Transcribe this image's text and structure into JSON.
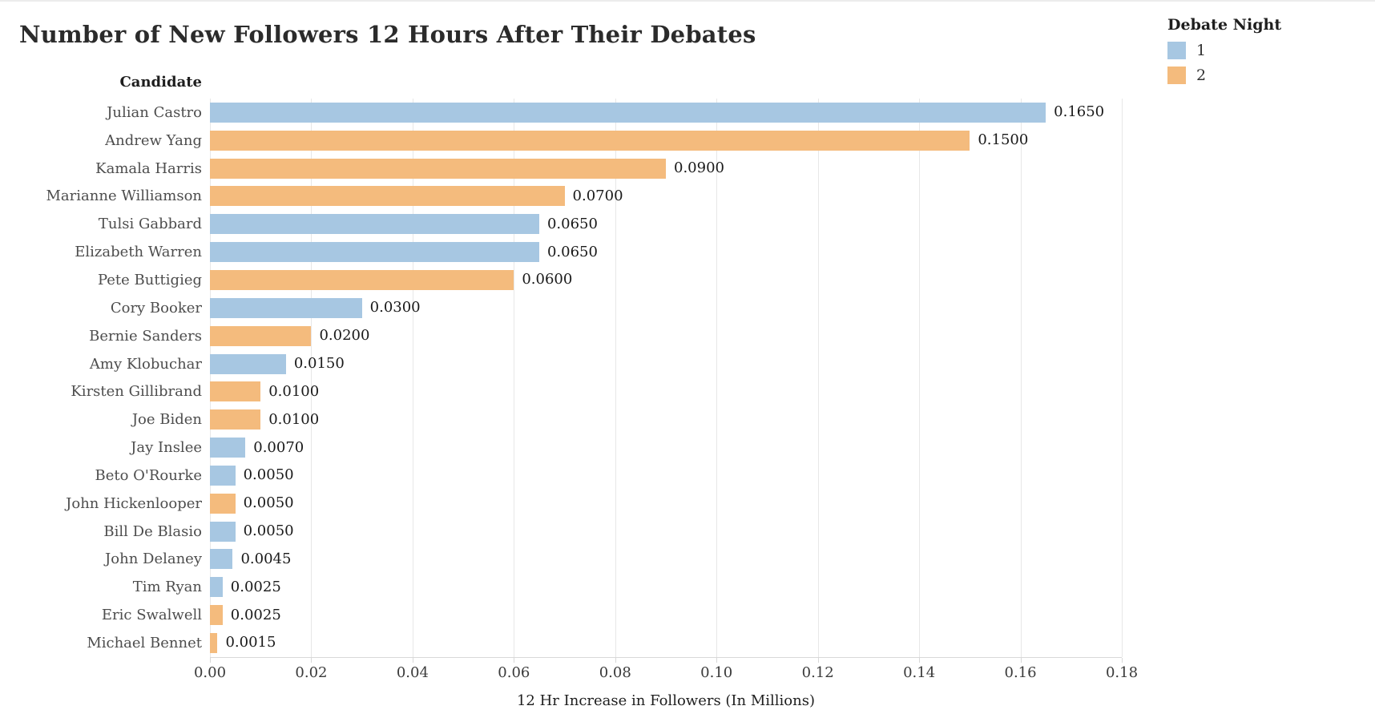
{
  "legend": {
    "title": "Debate Night",
    "items": [
      {
        "label": "1",
        "color": "#a7c7e2"
      },
      {
        "label": "2",
        "color": "#f4bb7d"
      }
    ]
  },
  "chart_data": {
    "type": "bar",
    "orientation": "horizontal",
    "title": "Number of New Followers 12 Hours After Their Debates",
    "xlabel": "12 Hr Increase in Followers (In Millions)",
    "ylabel": "Candidate",
    "xlim": [
      0,
      0.18
    ],
    "xticks": [
      0.0,
      0.02,
      0.04,
      0.06,
      0.08,
      0.1,
      0.12,
      0.14,
      0.16,
      0.18
    ],
    "xtick_labels": [
      "0.00",
      "0.02",
      "0.04",
      "0.06",
      "0.08",
      "0.10",
      "0.12",
      "0.14",
      "0.16",
      "0.18"
    ],
    "grid": "vertical-light",
    "legend_position": "top-right",
    "series_field": "Debate Night",
    "bars": [
      {
        "candidate": "Julian Castro",
        "value": 0.165,
        "label": "0.1650",
        "debate_night": "1"
      },
      {
        "candidate": "Andrew Yang",
        "value": 0.15,
        "label": "0.1500",
        "debate_night": "2"
      },
      {
        "candidate": "Kamala Harris",
        "value": 0.09,
        "label": "0.0900",
        "debate_night": "2"
      },
      {
        "candidate": "Marianne Williamson",
        "value": 0.07,
        "label": "0.0700",
        "debate_night": "2"
      },
      {
        "candidate": "Tulsi Gabbard",
        "value": 0.065,
        "label": "0.0650",
        "debate_night": "1"
      },
      {
        "candidate": "Elizabeth Warren",
        "value": 0.065,
        "label": "0.0650",
        "debate_night": "1"
      },
      {
        "candidate": "Pete Buttigieg",
        "value": 0.06,
        "label": "0.0600",
        "debate_night": "2"
      },
      {
        "candidate": "Cory Booker",
        "value": 0.03,
        "label": "0.0300",
        "debate_night": "1"
      },
      {
        "candidate": "Bernie Sanders",
        "value": 0.02,
        "label": "0.0200",
        "debate_night": "2"
      },
      {
        "candidate": "Amy Klobuchar",
        "value": 0.015,
        "label": "0.0150",
        "debate_night": "1"
      },
      {
        "candidate": "Kirsten Gillibrand",
        "value": 0.01,
        "label": "0.0100",
        "debate_night": "2"
      },
      {
        "candidate": "Joe Biden",
        "value": 0.01,
        "label": "0.0100",
        "debate_night": "2"
      },
      {
        "candidate": "Jay Inslee",
        "value": 0.007,
        "label": "0.0070",
        "debate_night": "1"
      },
      {
        "candidate": "Beto O'Rourke",
        "value": 0.005,
        "label": "0.0050",
        "debate_night": "1"
      },
      {
        "candidate": "John Hickenlooper",
        "value": 0.005,
        "label": "0.0050",
        "debate_night": "2"
      },
      {
        "candidate": "Bill De Blasio",
        "value": 0.005,
        "label": "0.0050",
        "debate_night": "1"
      },
      {
        "candidate": "John Delaney",
        "value": 0.0045,
        "label": "0.0045",
        "debate_night": "1"
      },
      {
        "candidate": "Tim Ryan",
        "value": 0.0025,
        "label": "0.0025",
        "debate_night": "1"
      },
      {
        "candidate": "Eric Swalwell",
        "value": 0.0025,
        "label": "0.0025",
        "debate_night": "2"
      },
      {
        "candidate": "Michael Bennet",
        "value": 0.0015,
        "label": "0.0015",
        "debate_night": "2"
      }
    ]
  }
}
